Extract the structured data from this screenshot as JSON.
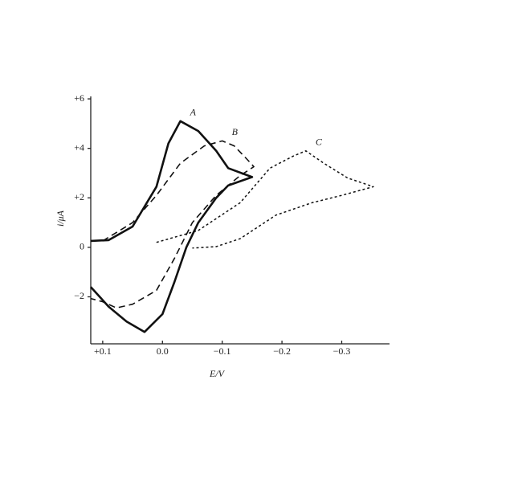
{
  "chart_data": {
    "type": "line",
    "xlabel": "E/V",
    "ylabel": "i/μA",
    "xlim": [
      0.12,
      -0.38
    ],
    "ylim": [
      -3.9,
      6.1
    ],
    "xticks": [
      {
        "value": 0.1,
        "label": "+0.1"
      },
      {
        "value": 0,
        "label": "0.0"
      },
      {
        "value": -0.1,
        "label": "−0.1"
      },
      {
        "value": -0.2,
        "label": "−0.2"
      },
      {
        "value": -0.3,
        "label": "−0.3"
      }
    ],
    "yticks": [
      {
        "value": 6,
        "label": "+6"
      },
      {
        "value": 4,
        "label": "+4"
      },
      {
        "value": 2,
        "label": "+2"
      },
      0,
      {
        "value": -2,
        "label": "−2"
      }
    ],
    "series": [
      {
        "name": "A",
        "color": "#111111",
        "style": "solid",
        "x": [
          0.12,
          0.09,
          0.05,
          0.01,
          -0.01,
          -0.03,
          -0.06,
          -0.09,
          -0.11,
          -0.15,
          -0.11,
          -0.09,
          -0.06,
          -0.04,
          -0.02,
          0.0,
          0.03,
          0.06,
          0.09,
          0.12
        ],
        "values": [
          0.26,
          0.29,
          0.84,
          2.45,
          4.2,
          5.1,
          4.7,
          3.9,
          3.2,
          2.84,
          2.5,
          2.0,
          1.0,
          0.0,
          -1.4,
          -2.7,
          -3.42,
          -3.0,
          -2.4,
          -1.6
        ]
      },
      {
        "name": "B",
        "color": "#111111",
        "style": "dashed",
        "x": [
          0.1,
          0.05,
          0.01,
          -0.03,
          -0.07,
          -0.1,
          -0.12,
          -0.14,
          -0.153,
          -0.13,
          -0.09,
          -0.05,
          -0.02,
          0.01,
          0.05,
          0.077,
          0.1,
          0.12
        ],
        "values": [
          0.26,
          1.0,
          2.1,
          3.4,
          4.1,
          4.3,
          4.1,
          3.6,
          3.26,
          2.9,
          2.1,
          1.0,
          -0.45,
          -1.74,
          -2.3,
          -2.45,
          -2.2,
          -2.07
        ]
      },
      {
        "name": "C",
        "color": "#111111",
        "style": "dotted",
        "x": [
          0.01,
          -0.06,
          -0.13,
          -0.18,
          -0.22,
          -0.24,
          -0.27,
          -0.31,
          -0.353,
          -0.3,
          -0.25,
          -0.19,
          -0.13,
          -0.09,
          -0.05
        ],
        "values": [
          0.2,
          0.68,
          1.8,
          3.2,
          3.7,
          3.9,
          3.4,
          2.8,
          2.45,
          2.1,
          1.8,
          1.3,
          0.35,
          0.03,
          -0.03
        ]
      }
    ]
  }
}
